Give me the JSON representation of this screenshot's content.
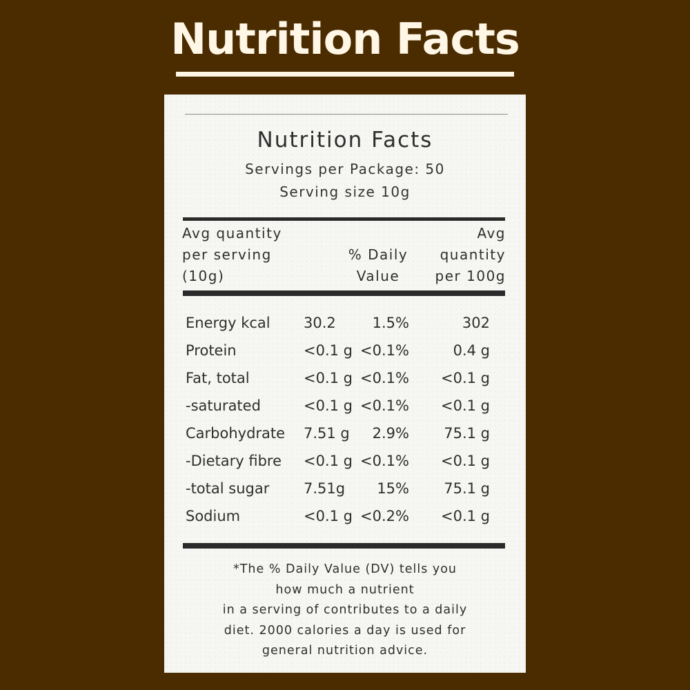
{
  "banner": {
    "title": "Nutrition Facts"
  },
  "label": {
    "title": "Nutrition Facts",
    "servings_per_package": "Servings per Package: 50",
    "serving_size": "Serving size 10g",
    "headers": {
      "per_serving": [
        "Avg quantity",
        "per serving",
        "(10g)"
      ],
      "daily_value": [
        "% Daily",
        "Value"
      ],
      "per_100g": [
        "Avg",
        "quantity",
        "per 100g"
      ]
    },
    "rows": [
      {
        "name": "Energy kcal",
        "per_serving": "30.2",
        "daily_value": "1.5%",
        "per_100g": "302"
      },
      {
        "name": "Protein",
        "per_serving": "<0.1 g",
        "daily_value": "<0.1%",
        "per_100g": "0.4 g"
      },
      {
        "name": "Fat, total",
        "per_serving": "<0.1 g",
        "daily_value": "<0.1%",
        "per_100g": "<0.1 g"
      },
      {
        "name": "-saturated",
        "per_serving": "<0.1 g",
        "daily_value": "<0.1%",
        "per_100g": "<0.1 g"
      },
      {
        "name": "Carbohydrate",
        "per_serving": "7.51 g",
        "daily_value": "2.9%",
        "per_100g": "75.1 g"
      },
      {
        "name": "-Dietary fibre",
        "per_serving": "<0.1 g",
        "daily_value": "<0.1%",
        "per_100g": "<0.1 g"
      },
      {
        "name": "-total sugar",
        "per_serving": "7.51g",
        "daily_value": "15%",
        "per_100g": "75.1 g"
      },
      {
        "name": "Sodium",
        "per_serving": "<0.1 g",
        "daily_value": "<0.2%",
        "per_100g": "<0.1 g"
      }
    ],
    "footnote": [
      "*The % Daily Value (DV) tells you",
      "how much a nutrient",
      "in a serving of contributes to a daily",
      "diet. 2000 calories a day is used for",
      "general nutrition advice."
    ]
  },
  "colors": {
    "background": "#4a2c00",
    "banner_text": "#fff6e6",
    "card": "#f6f6f3",
    "ink": "#2e2e2e"
  }
}
